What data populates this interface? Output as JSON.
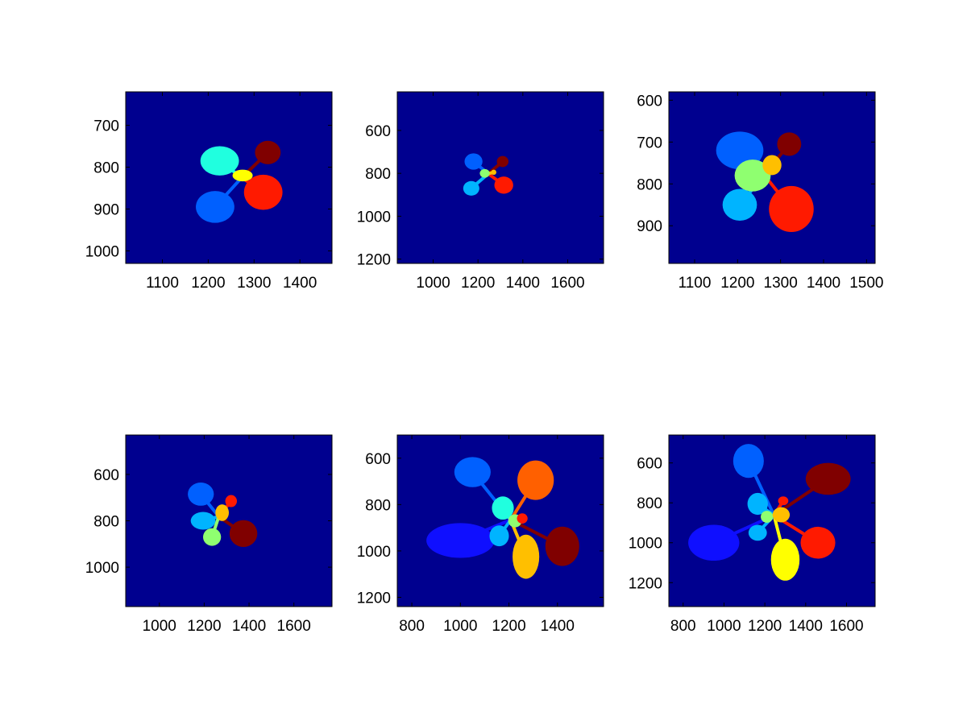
{
  "figure": {
    "background": "#ffffff",
    "axes_background": "#00008f",
    "colormap": "jet",
    "leaf_colors": [
      "#0f0fff",
      "#0060ff",
      "#00b4ff",
      "#20ffdf",
      "#8fff70",
      "#ffff00",
      "#ffbf00",
      "#ff6000",
      "#ff1a00",
      "#800000"
    ]
  },
  "chart_data": [
    {
      "type": "image",
      "subplot": "row 1, col 1",
      "title": "",
      "xlabel": "",
      "ylabel": "",
      "xlim": [
        1020,
        1470
      ],
      "ylim": [
        620,
        1030
      ],
      "y_reversed": true,
      "xticks": [
        1100,
        1200,
        1300,
        1400
      ],
      "yticks": [
        700,
        800,
        900,
        1000
      ],
      "leaves": [
        {
          "cx": 1225,
          "cy": 785,
          "rx": 42,
          "ry": 35,
          "color": "#20ffdf"
        },
        {
          "cx": 1330,
          "cy": 765,
          "rx": 28,
          "ry": 28,
          "color": "#800000"
        },
        {
          "cx": 1215,
          "cy": 895,
          "rx": 42,
          "ry": 38,
          "color": "#0060ff"
        },
        {
          "cx": 1320,
          "cy": 860,
          "rx": 42,
          "ry": 42,
          "color": "#ff1a00"
        },
        {
          "cx": 1275,
          "cy": 820,
          "rx": 22,
          "ry": 14,
          "color": "#ffff00"
        }
      ]
    },
    {
      "type": "image",
      "subplot": "row 1, col 2",
      "title": "",
      "xlabel": "",
      "ylabel": "",
      "xlim": [
        840,
        1760
      ],
      "ylim": [
        420,
        1220
      ],
      "y_reversed": true,
      "xticks": [
        1000,
        1200,
        1400,
        1600
      ],
      "yticks": [
        600,
        800,
        1000,
        1200
      ],
      "leaves": [
        {
          "cx": 1180,
          "cy": 745,
          "rx": 40,
          "ry": 38,
          "color": "#0060ff"
        },
        {
          "cx": 1310,
          "cy": 745,
          "rx": 26,
          "ry": 26,
          "color": "#800000"
        },
        {
          "cx": 1170,
          "cy": 870,
          "rx": 36,
          "ry": 34,
          "color": "#00b4ff"
        },
        {
          "cx": 1315,
          "cy": 855,
          "rx": 42,
          "ry": 40,
          "color": "#ff1a00"
        },
        {
          "cx": 1230,
          "cy": 800,
          "rx": 22,
          "ry": 20,
          "color": "#8fff70"
        },
        {
          "cx": 1270,
          "cy": 795,
          "rx": 12,
          "ry": 12,
          "color": "#ffbf00"
        }
      ]
    },
    {
      "type": "image",
      "subplot": "row 1, col 3",
      "title": "",
      "xlabel": "",
      "ylabel": "",
      "xlim": [
        1040,
        1520
      ],
      "ylim": [
        580,
        990
      ],
      "y_reversed": true,
      "xticks": [
        1100,
        1200,
        1300,
        1400,
        1500
      ],
      "yticks": [
        600,
        700,
        800,
        900
      ],
      "leaves": [
        {
          "cx": 1205,
          "cy": 720,
          "rx": 55,
          "ry": 45,
          "color": "#0060ff"
        },
        {
          "cx": 1320,
          "cy": 705,
          "rx": 28,
          "ry": 28,
          "color": "#800000"
        },
        {
          "cx": 1205,
          "cy": 850,
          "rx": 40,
          "ry": 38,
          "color": "#00b4ff"
        },
        {
          "cx": 1325,
          "cy": 860,
          "rx": 52,
          "ry": 55,
          "color": "#ff1a00"
        },
        {
          "cx": 1235,
          "cy": 780,
          "rx": 42,
          "ry": 38,
          "color": "#8fff70"
        },
        {
          "cx": 1280,
          "cy": 755,
          "rx": 22,
          "ry": 24,
          "color": "#ffbf00"
        }
      ]
    },
    {
      "type": "image",
      "subplot": "row 2, col 1",
      "title": "",
      "xlabel": "",
      "ylabel": "",
      "xlim": [
        850,
        1770
      ],
      "ylim": [
        430,
        1170
      ],
      "y_reversed": true,
      "xticks": [
        1000,
        1200,
        1400,
        1600
      ],
      "yticks": [
        600,
        800,
        1000
      ],
      "leaves": [
        {
          "cx": 1185,
          "cy": 685,
          "rx": 58,
          "ry": 50,
          "color": "#0060ff"
        },
        {
          "cx": 1320,
          "cy": 715,
          "rx": 26,
          "ry": 26,
          "color": "#ff1a00"
        },
        {
          "cx": 1195,
          "cy": 800,
          "rx": 55,
          "ry": 38,
          "color": "#00b4ff"
        },
        {
          "cx": 1375,
          "cy": 855,
          "rx": 62,
          "ry": 58,
          "color": "#800000"
        },
        {
          "cx": 1235,
          "cy": 870,
          "rx": 40,
          "ry": 38,
          "color": "#8fff70"
        },
        {
          "cx": 1280,
          "cy": 765,
          "rx": 30,
          "ry": 36,
          "color": "#ffbf00"
        }
      ]
    },
    {
      "type": "image",
      "subplot": "row 2, col 2",
      "title": "",
      "xlabel": "",
      "ylabel": "",
      "xlim": [
        740,
        1590
      ],
      "ylim": [
        500,
        1240
      ],
      "y_reversed": true,
      "xticks": [
        800,
        1000,
        1200,
        1400
      ],
      "yticks": [
        600,
        800,
        1000,
        1200
      ],
      "leaves": [
        {
          "cx": 1050,
          "cy": 660,
          "rx": 75,
          "ry": 65,
          "color": "#0060ff"
        },
        {
          "cx": 1310,
          "cy": 695,
          "rx": 75,
          "ry": 85,
          "color": "#ff6000"
        },
        {
          "cx": 1000,
          "cy": 955,
          "rx": 140,
          "ry": 75,
          "color": "#0f0fff"
        },
        {
          "cx": 1420,
          "cy": 980,
          "rx": 70,
          "ry": 85,
          "color": "#800000"
        },
        {
          "cx": 1270,
          "cy": 1025,
          "rx": 55,
          "ry": 95,
          "color": "#ffbf00"
        },
        {
          "cx": 1175,
          "cy": 815,
          "rx": 45,
          "ry": 50,
          "color": "#20ffdf"
        },
        {
          "cx": 1160,
          "cy": 935,
          "rx": 40,
          "ry": 45,
          "color": "#00b4ff"
        },
        {
          "cx": 1225,
          "cy": 870,
          "rx": 28,
          "ry": 28,
          "color": "#8fff70"
        },
        {
          "cx": 1255,
          "cy": 860,
          "rx": 22,
          "ry": 22,
          "color": "#ff1a00"
        }
      ]
    },
    {
      "type": "image",
      "subplot": "row 2, col 3",
      "title": "",
      "xlabel": "",
      "ylabel": "",
      "xlim": [
        730,
        1740
      ],
      "ylim": [
        460,
        1320
      ],
      "y_reversed": true,
      "xticks": [
        800,
        1000,
        1200,
        1400,
        1600
      ],
      "yticks": [
        600,
        800,
        1000,
        1200
      ],
      "leaves": [
        {
          "cx": 1120,
          "cy": 590,
          "rx": 75,
          "ry": 85,
          "color": "#0060ff"
        },
        {
          "cx": 1510,
          "cy": 680,
          "rx": 110,
          "ry": 80,
          "color": "#800000"
        },
        {
          "cx": 950,
          "cy": 1000,
          "rx": 125,
          "ry": 90,
          "color": "#0f0fff"
        },
        {
          "cx": 1460,
          "cy": 1000,
          "rx": 85,
          "ry": 80,
          "color": "#ff1a00"
        },
        {
          "cx": 1300,
          "cy": 1085,
          "rx": 70,
          "ry": 105,
          "color": "#ffff00"
        },
        {
          "cx": 1165,
          "cy": 805,
          "rx": 50,
          "ry": 55,
          "color": "#00b4ff"
        },
        {
          "cx": 1165,
          "cy": 950,
          "rx": 45,
          "ry": 40,
          "color": "#00b4ff"
        },
        {
          "cx": 1210,
          "cy": 870,
          "rx": 30,
          "ry": 30,
          "color": "#8fff70"
        },
        {
          "cx": 1280,
          "cy": 860,
          "rx": 42,
          "ry": 38,
          "color": "#ffbf00"
        },
        {
          "cx": 1290,
          "cy": 790,
          "rx": 25,
          "ry": 22,
          "color": "#ff1a00"
        }
      ]
    }
  ]
}
